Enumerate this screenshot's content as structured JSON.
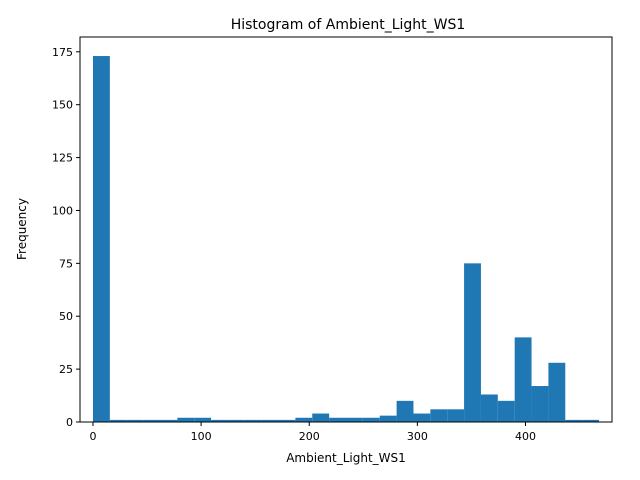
{
  "chart_data": {
    "type": "bar",
    "title": "Histogram of Ambient_Light_WS1",
    "xlabel": "Ambient_Light_WS1",
    "ylabel": "Frequency",
    "xlim": [
      -12,
      480
    ],
    "ylim": [
      0,
      182
    ],
    "xticks": [
      0,
      100,
      200,
      300,
      400
    ],
    "yticks": [
      0,
      25,
      50,
      75,
      100,
      125,
      150,
      175
    ],
    "bin_width": 15.6,
    "bins": [
      {
        "x0": 0.0,
        "x1": 15.6,
        "count": 173
      },
      {
        "x0": 15.6,
        "x1": 31.2,
        "count": 1
      },
      {
        "x0": 31.2,
        "x1": 46.8,
        "count": 1
      },
      {
        "x0": 46.8,
        "x1": 62.4,
        "count": 1
      },
      {
        "x0": 62.4,
        "x1": 78.0,
        "count": 1
      },
      {
        "x0": 78.0,
        "x1": 93.6,
        "count": 2
      },
      {
        "x0": 93.6,
        "x1": 109.2,
        "count": 2
      },
      {
        "x0": 109.2,
        "x1": 124.8,
        "count": 1
      },
      {
        "x0": 124.8,
        "x1": 140.4,
        "count": 1
      },
      {
        "x0": 140.4,
        "x1": 156.0,
        "count": 1
      },
      {
        "x0": 156.0,
        "x1": 171.6,
        "count": 1
      },
      {
        "x0": 171.6,
        "x1": 187.2,
        "count": 1
      },
      {
        "x0": 187.2,
        "x1": 202.8,
        "count": 2
      },
      {
        "x0": 202.8,
        "x1": 218.4,
        "count": 4
      },
      {
        "x0": 218.4,
        "x1": 234.0,
        "count": 2
      },
      {
        "x0": 234.0,
        "x1": 249.6,
        "count": 2
      },
      {
        "x0": 249.6,
        "x1": 265.2,
        "count": 2
      },
      {
        "x0": 265.2,
        "x1": 280.8,
        "count": 3
      },
      {
        "x0": 280.8,
        "x1": 296.4,
        "count": 10
      },
      {
        "x0": 296.4,
        "x1": 312.0,
        "count": 4
      },
      {
        "x0": 312.0,
        "x1": 327.6,
        "count": 6
      },
      {
        "x0": 327.6,
        "x1": 343.2,
        "count": 6
      },
      {
        "x0": 343.2,
        "x1": 358.8,
        "count": 75
      },
      {
        "x0": 358.8,
        "x1": 374.4,
        "count": 13
      },
      {
        "x0": 374.4,
        "x1": 390.0,
        "count": 10
      },
      {
        "x0": 390.0,
        "x1": 405.6,
        "count": 40
      },
      {
        "x0": 405.6,
        "x1": 421.2,
        "count": 17
      },
      {
        "x0": 421.2,
        "x1": 436.8,
        "count": 28
      },
      {
        "x0": 436.8,
        "x1": 452.4,
        "count": 1
      },
      {
        "x0": 452.4,
        "x1": 468.0,
        "count": 1
      }
    ],
    "bar_color": "#1f77b4",
    "grid": false,
    "legend": "none"
  }
}
